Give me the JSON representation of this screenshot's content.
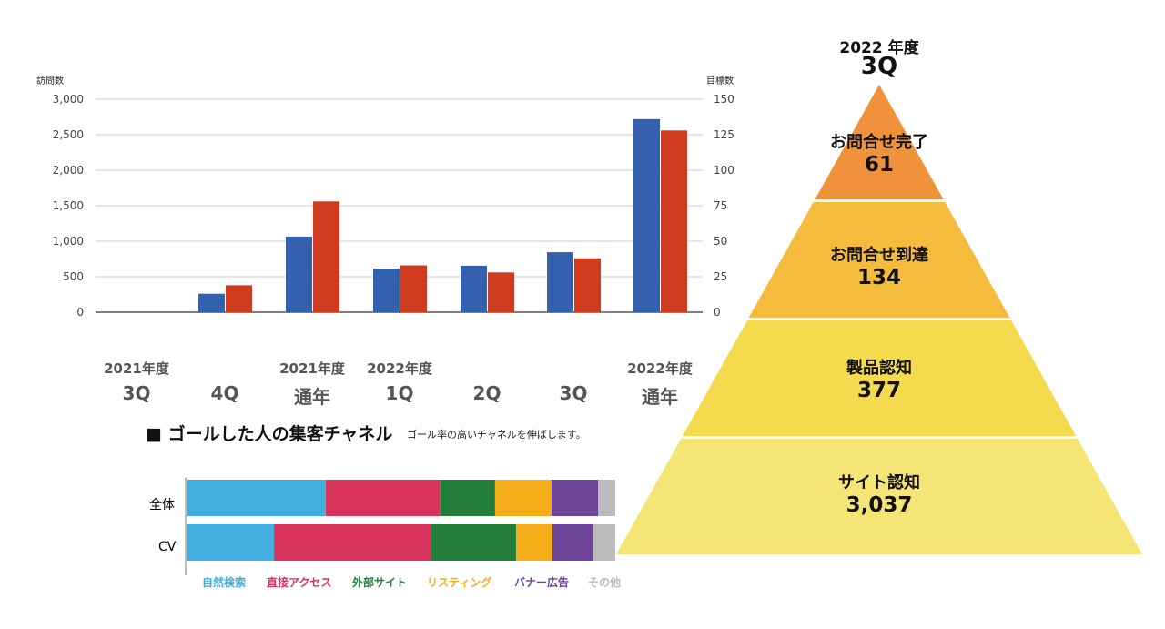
{
  "chart_data": [
    {
      "type": "bar",
      "ylabel": "訪問数",
      "y2label": "目標数",
      "ylim": [
        0,
        3000
      ],
      "y2lim": [
        0,
        150
      ],
      "yticks": [
        "3,000",
        "2,500",
        "2,000",
        "1,500",
        "1,000",
        "500",
        "0"
      ],
      "y2ticks": [
        "150",
        "125",
        "100",
        "75",
        "50",
        "25",
        "0"
      ],
      "grid": true,
      "categories": [
        {
          "year": "2021年度",
          "label": "3Q"
        },
        {
          "year": "",
          "label": "4Q"
        },
        {
          "year": "2021年度",
          "label": "通年"
        },
        {
          "year": "2022年度",
          "label": "1Q"
        },
        {
          "year": "",
          "label": "2Q"
        },
        {
          "year": "",
          "label": "3Q"
        },
        {
          "year": "2022年度",
          "label": "通年"
        }
      ],
      "series": [
        {
          "axis": "left",
          "color": "#3461ad",
          "values": [
            0,
            260,
            1065,
            615,
            655,
            845,
            2720
          ]
        },
        {
          "axis": "right",
          "color": "#d13b1d",
          "values": [
            0,
            19,
            78,
            33,
            28,
            38,
            128
          ]
        }
      ]
    },
    {
      "type": "bar",
      "stacked": true,
      "orientation": "horizontal",
      "percent": true,
      "title": "■ ゴールした人の集客チャネル",
      "subtitle": "ゴール率の高いチャネルを伸ばします。",
      "categories": [
        "全体",
        "CV"
      ],
      "series": [
        {
          "name": "自然検索",
          "color": "#41aee0",
          "values": [
            32.3,
            20.2
          ]
        },
        {
          "name": "直接アクセス",
          "color": "#d8335d",
          "values": [
            26.8,
            36.8
          ]
        },
        {
          "name": "外部サイト",
          "color": "#227e3a",
          "values": [
            12.8,
            19.8
          ]
        },
        {
          "name": "リスティング",
          "color": "#f5ae1a",
          "values": [
            13.2,
            8.5
          ]
        },
        {
          "name": "バナー広告",
          "color": "#6d4497",
          "values": [
            10.9,
            9.6
          ]
        },
        {
          "name": "その他",
          "color": "#bbbbbb",
          "values": [
            4.0,
            5.1
          ]
        }
      ],
      "legend": "bottom"
    },
    {
      "type": "funnel",
      "title_year": "2022 年度",
      "title_q": "3Q",
      "stages": [
        {
          "name": "お問合せ完了",
          "value": "61",
          "color": "#f0913b"
        },
        {
          "name": "お問合せ到達",
          "value": "134",
          "color": "#f4bb3c"
        },
        {
          "name": "製品認知",
          "value": "377",
          "color": "#f4da4d"
        },
        {
          "name": "サイト認知",
          "value": "3,037",
          "color": "#f5e576"
        }
      ]
    }
  ]
}
